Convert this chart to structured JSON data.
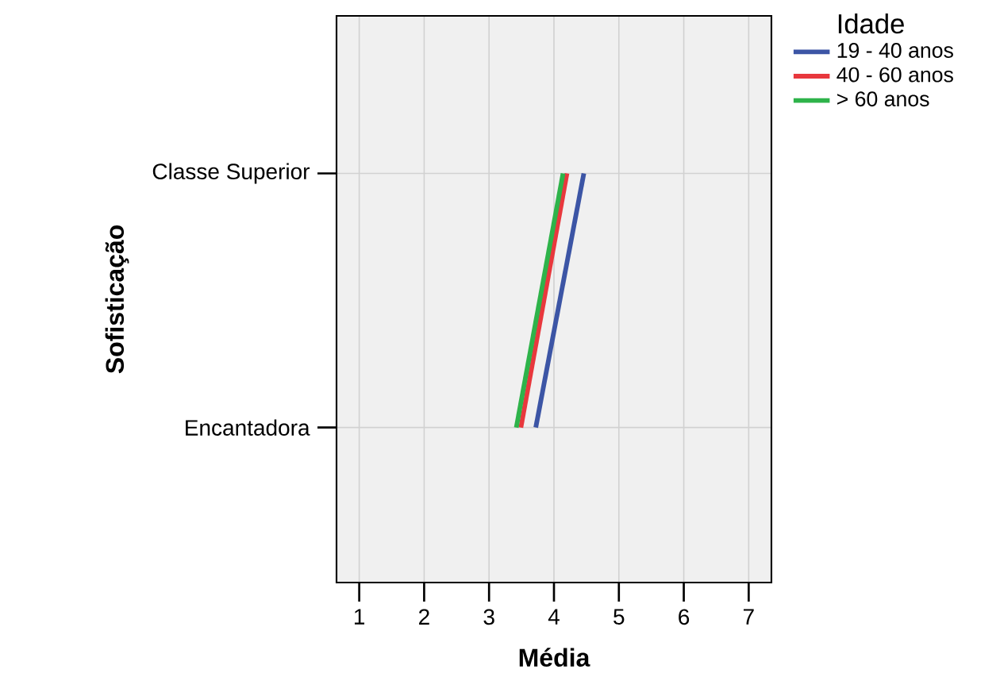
{
  "chart_data": {
    "type": "line",
    "orientation": "horizontal",
    "xlabel": "Média",
    "ylabel": "Sofisticação",
    "legend_title": "Idade",
    "legend": "right",
    "grid": true,
    "categories": [
      "Classe Superior",
      "Encantadora"
    ],
    "series": [
      {
        "name": "19 - 40 anos",
        "color": "#3c55a5",
        "values": [
          4.46,
          3.72
        ]
      },
      {
        "name": "40 - 60 anos",
        "color": "#e8383d",
        "values": [
          4.2,
          3.49
        ]
      },
      {
        "name": "> 60 anos",
        "color": "#2eb34a",
        "values": [
          4.14,
          3.42
        ]
      }
    ],
    "xlim": [
      0.65,
      7.35
    ],
    "xticks": [
      1,
      2,
      3,
      4,
      5,
      6,
      7
    ]
  }
}
